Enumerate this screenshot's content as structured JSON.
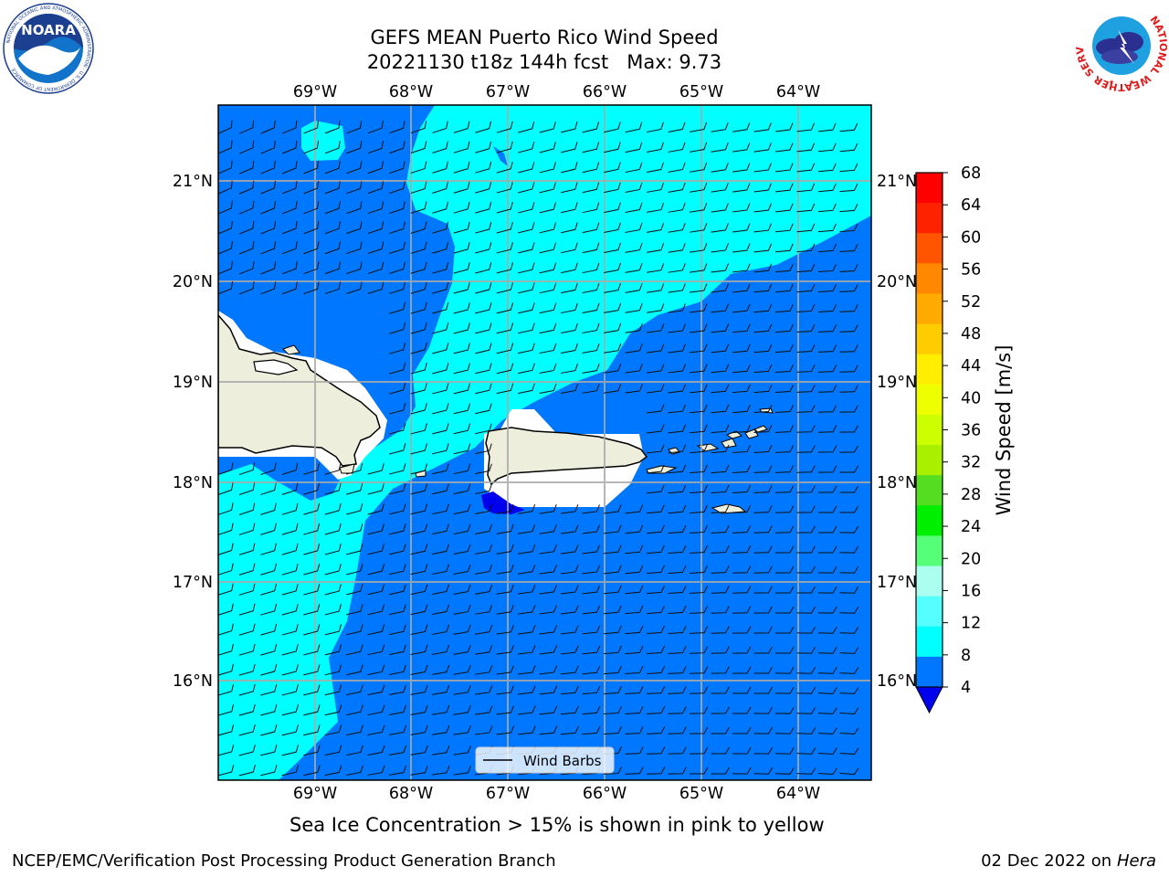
{
  "title_line1": "GEFS MEAN Puerto Rico Wind Speed",
  "title_line2": "20221130 t18z 144h fcst   Max: 9.73",
  "logo_left": {
    "name": "NOARA",
    "ring_text": "NATIONAL OCEANIC AND ATMOSPHERIC ADMINISTRATION · U.S. DEPARTMENT OF COMMERCE"
  },
  "logo_right": {
    "ring_text": "NATIONAL WEATHER SERVICE"
  },
  "map": {
    "lon_labels": [
      "69°W",
      "68°W",
      "67°W",
      "66°W",
      "65°W",
      "64°W"
    ],
    "lat_labels": [
      "21°N",
      "20°N",
      "19°N",
      "18°N",
      "17°N",
      "16°N"
    ],
    "legend_label": "Wind Barbs"
  },
  "colorbar": {
    "label": "Wind Speed [m/s]",
    "ticks": [
      "68",
      "64",
      "60",
      "56",
      "52",
      "48",
      "44",
      "40",
      "36",
      "32",
      "28",
      "24",
      "20",
      "16",
      "12",
      "8",
      "4"
    ],
    "colors": [
      "#ff0000",
      "#ff2200",
      "#ff5500",
      "#ff8800",
      "#ffaa00",
      "#ffcc00",
      "#ffee00",
      "#eeff00",
      "#ccff00",
      "#aaee00",
      "#55dd22",
      "#00ee00",
      "#55ff77",
      "#aaffee",
      "#55ffff",
      "#00ffff",
      "#0077ff"
    ],
    "under_color": "#0000ee"
  },
  "caption": "Sea Ice Concentration > 15% is shown in pink to yellow",
  "footer_left": "NCEP/EMC/Verification Post Processing Product Generation Branch",
  "footer_date": "02 Dec 2022 on",
  "footer_machine": "Hera"
}
